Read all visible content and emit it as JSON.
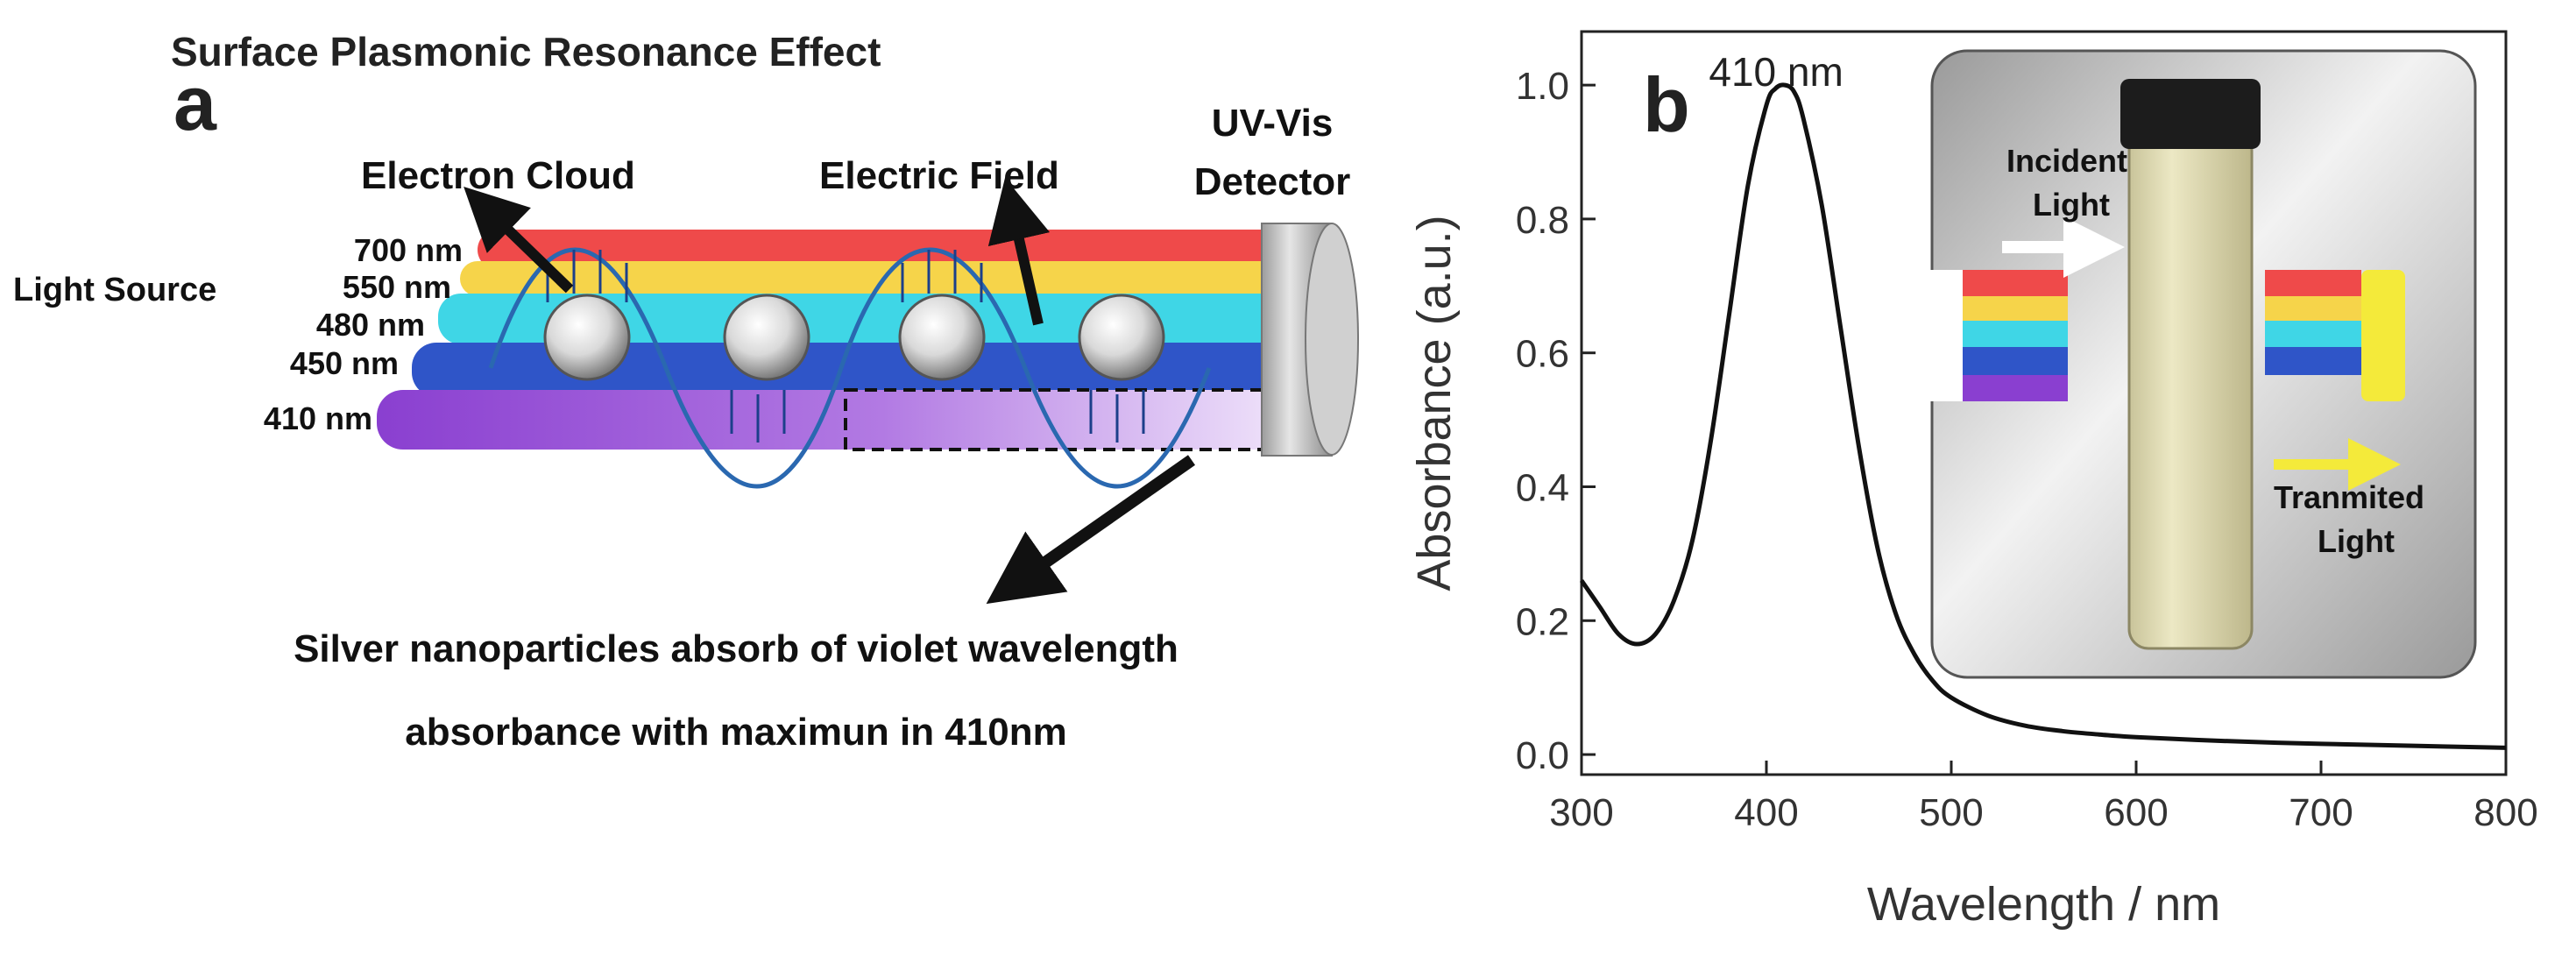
{
  "panel_a": {
    "letter": "a",
    "title": "Surface Plasmonic Resonance Effect",
    "labels": {
      "electron_cloud": "Electron Cloud",
      "electric_field": "Electric Field",
      "detector_line1": "UV-Vis",
      "detector_line2": "Detector",
      "light_source": "Light Source"
    },
    "wavelengths": [
      "700 nm",
      "550 nm",
      "480 nm",
      "450 nm",
      "410 nm"
    ],
    "beam_colors": [
      "#ef4a4a",
      "#f6d44a",
      "#3fd6e6",
      "#2f55c8",
      "#8a3fd0"
    ],
    "caption_line1": "Silver nanoparticles absorb of violet wavelength",
    "caption_line2": "absorbance with maximun in 410nm"
  },
  "panel_b": {
    "letter": "b",
    "inset": {
      "incident_line1": "Incident",
      "incident_line2": "Light",
      "transmitted_line1": "Tranmited",
      "transmitted_line2": "Light"
    }
  },
  "chart_data": {
    "type": "line",
    "title": "",
    "xlabel": "Wavelength / nm",
    "ylabel": "Absorbance (a.u.)",
    "xlim": [
      300,
      800
    ],
    "ylim": [
      -0.03,
      1.08
    ],
    "xticks": [
      300,
      400,
      500,
      600,
      700,
      800
    ],
    "yticks": [
      0.0,
      0.2,
      0.4,
      0.6,
      0.8,
      1.0
    ],
    "ytick_labels": [
      "0.0",
      "0.2",
      "0.4",
      "0.6",
      "0.8",
      "1.0"
    ],
    "annotation": "410 nm",
    "series": [
      {
        "name": "Absorbance",
        "x": [
          300,
          310,
          320,
          330,
          340,
          350,
          360,
          370,
          380,
          390,
          400,
          405,
          410,
          415,
          420,
          430,
          440,
          450,
          460,
          470,
          480,
          490,
          500,
          520,
          540,
          560,
          580,
          600,
          650,
          700,
          750,
          800
        ],
        "y": [
          0.26,
          0.22,
          0.18,
          0.165,
          0.18,
          0.23,
          0.32,
          0.47,
          0.66,
          0.85,
          0.97,
          0.995,
          1.0,
          0.99,
          0.95,
          0.82,
          0.64,
          0.46,
          0.31,
          0.21,
          0.15,
          0.11,
          0.085,
          0.058,
          0.043,
          0.035,
          0.03,
          0.026,
          0.02,
          0.016,
          0.013,
          0.01
        ]
      }
    ]
  }
}
